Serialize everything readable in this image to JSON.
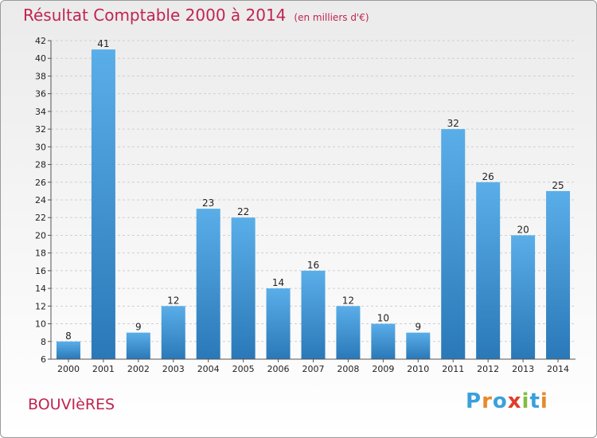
{
  "title": "Résultat Comptable 2000 à 2014",
  "unit_note": "(en milliers d'€)",
  "commune": "BOUVIèRES",
  "brand": {
    "letters": [
      "P",
      "r",
      "o",
      "x",
      "i",
      "t",
      "i"
    ],
    "colors": [
      "#3aa0dc",
      "#e8892a",
      "#3aa0dc",
      "#e23b2b",
      "#7fbf3f",
      "#3aa0dc",
      "#e8892a"
    ]
  },
  "colors": {
    "bar_light": "#5aaee8",
    "bar_dark": "#2a78b8",
    "title": "#c0254f"
  },
  "chart_data": {
    "type": "bar",
    "title": "Résultat Comptable 2000 à 2014",
    "xlabel": "",
    "ylabel": "",
    "categories": [
      "2000",
      "2001",
      "2002",
      "2003",
      "2004",
      "2005",
      "2006",
      "2007",
      "2008",
      "2009",
      "2010",
      "2011",
      "2012",
      "2013",
      "2014"
    ],
    "values": [
      8,
      41,
      9,
      12,
      23,
      22,
      14,
      16,
      12,
      10,
      9,
      32,
      26,
      20,
      25
    ],
    "ylim": [
      6,
      42
    ],
    "yticks": [
      6,
      8,
      10,
      12,
      14,
      16,
      18,
      20,
      22,
      24,
      26,
      28,
      30,
      32,
      34,
      36,
      38,
      40,
      42
    ],
    "grid": true,
    "legend": "none"
  }
}
